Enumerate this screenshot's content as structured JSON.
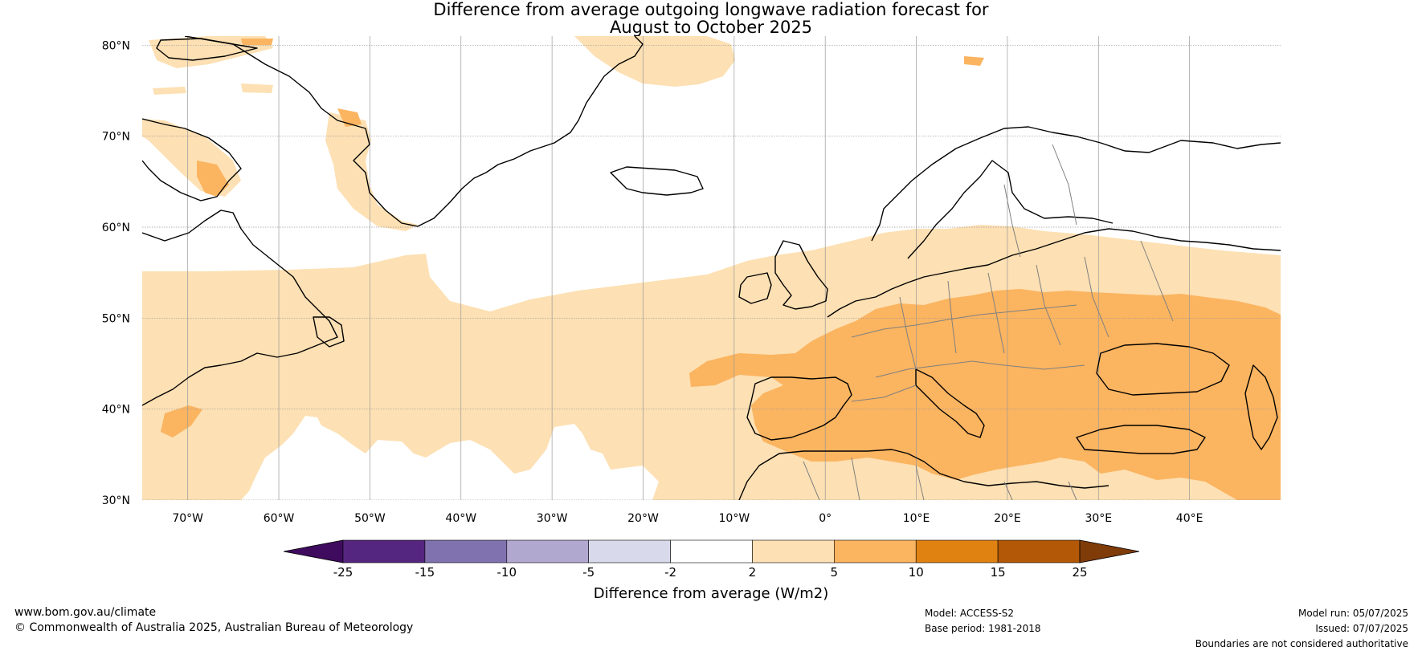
{
  "title": {
    "line1": "Difference from average outgoing longwave radiation forecast for",
    "line2": "August to October 2025"
  },
  "map": {
    "lat_labels": [
      "80°N",
      "70°N",
      "60°N",
      "50°N",
      "40°N",
      "30°N"
    ],
    "lon_labels": [
      "70°W",
      "60°W",
      "50°W",
      "40°W",
      "30°W",
      "20°W",
      "10°W",
      "0°",
      "10°E",
      "20°E",
      "30°E",
      "40°E"
    ],
    "colors": {
      "land_outline": "#000000",
      "borders": "#808080",
      "gridlines": "#999999",
      "anomaly_2_5": "#fde0b3",
      "anomaly_5_10": "#fbb460"
    }
  },
  "colorbar": {
    "title": "Difference from average (W/m2)",
    "tick_labels": [
      "-25",
      "-15",
      "-10",
      "-5",
      "-2",
      "2",
      "5",
      "10",
      "15",
      "25"
    ],
    "colors": [
      "#3f0b5e",
      "#55267f",
      "#8072ae",
      "#b1a8d0",
      "#d8d9eb",
      "#ffffff",
      "#fde0b3",
      "#fbb460",
      "#e08212",
      "#b35807",
      "#7f3b08"
    ]
  },
  "footer": {
    "url": "www.bom.gov.au/climate",
    "copyright": "© Commonwealth of Australia 2025, Australian Bureau of Meteorology",
    "model": "Model: ACCESS-S2",
    "base_period": "Base period: 1981-2018",
    "model_run": "Model run: 05/07/2025",
    "issued": "Issued: 07/07/2025",
    "disclaimer": "Boundaries are not considered authoritative"
  }
}
